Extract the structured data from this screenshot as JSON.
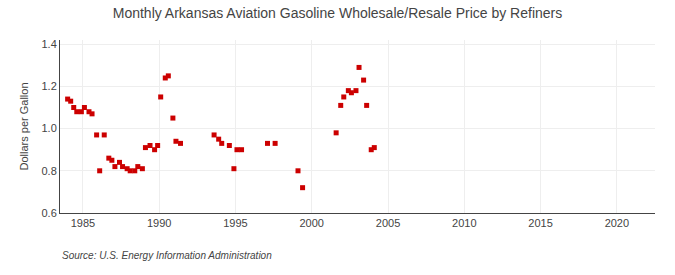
{
  "chart_data": {
    "type": "scatter",
    "title": "Monthly Arkansas Aviation Gasoline Wholesale/Resale Price by Refiners",
    "ylabel": "Dollars per Gallon",
    "annotations": [
      "Source: U.S. Energy Information Administration"
    ],
    "color": "#cc0000",
    "marker": "square",
    "grid": true,
    "xlim": [
      1983.5,
      2022.5
    ],
    "ylim": [
      0.6,
      1.42
    ],
    "xticks": [
      1985,
      1990,
      1995,
      2000,
      2005,
      2010,
      2015,
      2020
    ],
    "yticks": [
      0.6,
      0.8,
      {
        "value": 1.0,
        "label": "1.0"
      },
      1.2,
      1.4
    ],
    "x": [
      1984.0,
      1984.2,
      1984.4,
      1984.6,
      1984.9,
      1985.1,
      1985.4,
      1985.6,
      1985.9,
      1986.1,
      1986.4,
      1986.7,
      1986.9,
      1987.1,
      1987.4,
      1987.6,
      1987.9,
      1988.1,
      1988.4,
      1988.6,
      1988.9,
      1989.1,
      1989.4,
      1989.7,
      1989.9,
      1990.1,
      1990.4,
      1990.6,
      1990.9,
      1991.1,
      1991.4,
      1993.6,
      1993.9,
      1994.1,
      1994.6,
      1994.9,
      1995.1,
      1995.4,
      1997.1,
      1997.6,
      1999.1,
      1999.4,
      2001.6,
      2001.9,
      2002.1,
      2002.4,
      2002.6,
      2002.9,
      2003.1,
      2003.4,
      2003.6,
      2003.9,
      2004.1
    ],
    "values": [
      1.14,
      1.13,
      1.1,
      1.08,
      1.08,
      1.1,
      1.08,
      1.07,
      0.97,
      0.8,
      0.97,
      0.86,
      0.85,
      0.82,
      0.84,
      0.82,
      0.81,
      0.8,
      0.8,
      0.82,
      0.81,
      0.91,
      0.92,
      0.9,
      0.92,
      1.15,
      1.24,
      1.25,
      1.05,
      0.94,
      0.93,
      0.97,
      0.95,
      0.93,
      0.92,
      0.81,
      0.9,
      0.9,
      0.93,
      0.93,
      0.8,
      0.72,
      0.98,
      1.11,
      1.15,
      1.18,
      1.17,
      1.18,
      1.29,
      1.23,
      1.11,
      0.9,
      0.91
    ]
  }
}
